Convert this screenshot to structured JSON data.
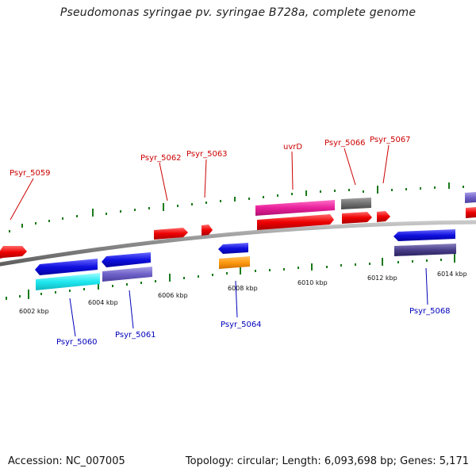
{
  "title": "Pseudomonas syringae pv. syringae B728a, complete genome",
  "footer": {
    "accession": "Accession: NC_007005",
    "summary": "Topology: circular; Length: 6,093,698 bp; Genes: 5,171"
  },
  "colors": {
    "backbone": "#8a8a8a",
    "forward_label": "#cc0000",
    "reverse_label": "#0000bb",
    "tick": "#1a7a1a"
  },
  "ticks": [
    {
      "label": "6002 kbp",
      "pos": 6002
    },
    {
      "label": "6004 kbp",
      "pos": 6004
    },
    {
      "label": "6006 kbp",
      "pos": 6006
    },
    {
      "label": "6008 kbp",
      "pos": 6008
    },
    {
      "label": "6010 kbp",
      "pos": 6010
    },
    {
      "label": "6012 kbp",
      "pos": 6012
    },
    {
      "label": "6014 kbp",
      "pos": 6014
    }
  ],
  "genes": [
    {
      "label": "Psyr_5059",
      "strand": "+"
    },
    {
      "label": "Psyr_5060",
      "strand": "-"
    },
    {
      "label": "Psyr_5061",
      "strand": "-"
    },
    {
      "label": "Psyr_5062",
      "strand": "+"
    },
    {
      "label": "Psyr_5063",
      "strand": "+"
    },
    {
      "label": "Psyr_5064",
      "strand": "-"
    },
    {
      "label": "uvrD",
      "strand": "+"
    },
    {
      "label": "Psyr_5066",
      "strand": "+"
    },
    {
      "label": "Psyr_5067",
      "strand": "+"
    },
    {
      "label": "Psyr_5068",
      "strand": "-"
    }
  ]
}
